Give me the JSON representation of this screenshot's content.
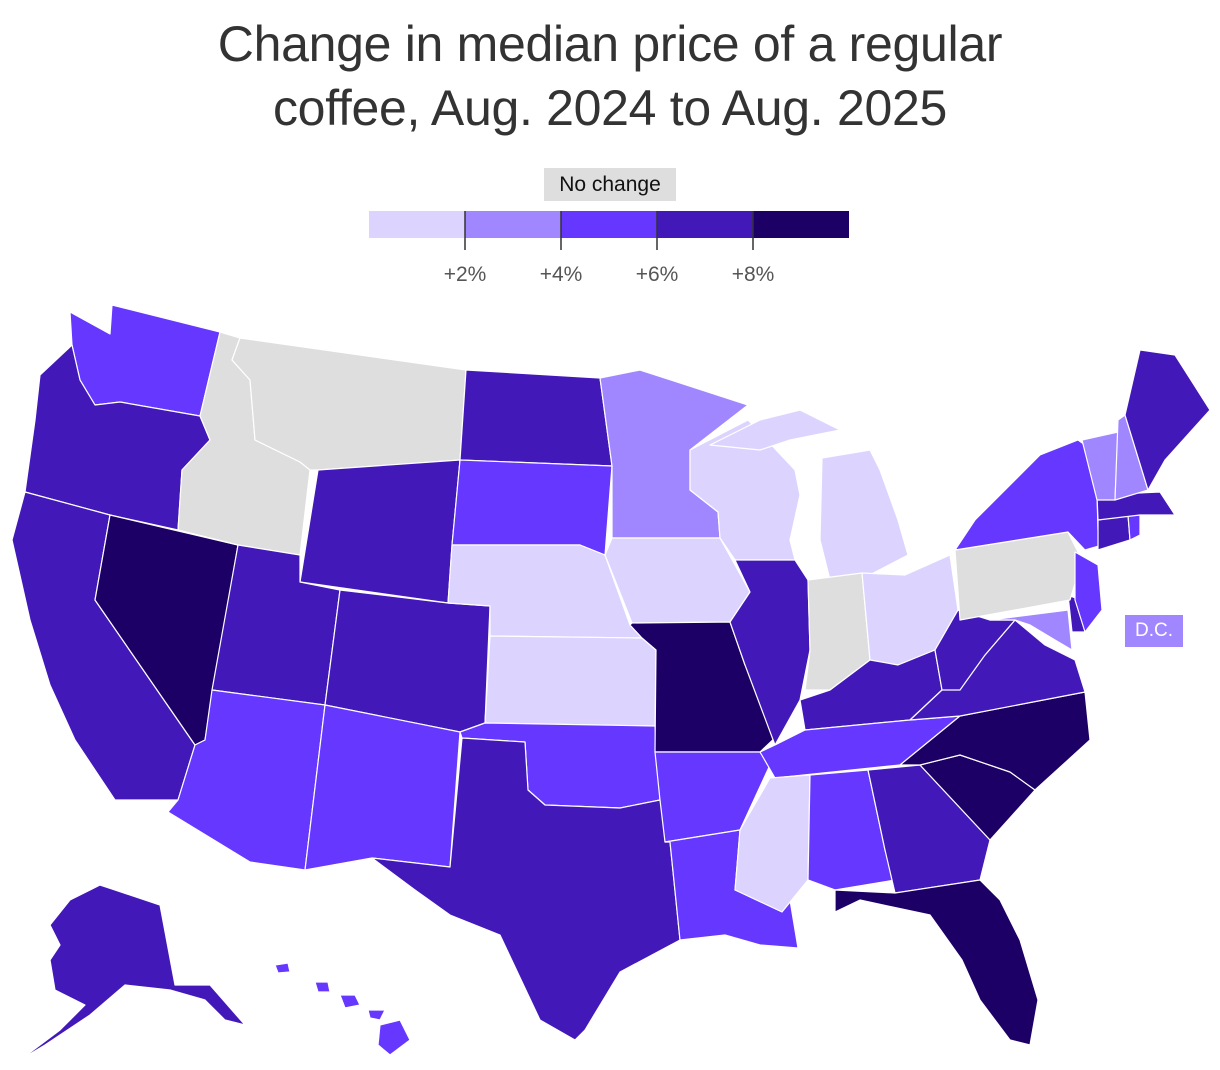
{
  "title_lines": [
    "Change in median price of a regular",
    "coffee, Aug. 2024 to Aug. 2025"
  ],
  "legend": {
    "no_change_label": "No change",
    "no_change_color": "#dedede",
    "bins": [
      {
        "min": 0,
        "max": 2,
        "color": "#dcd4ff"
      },
      {
        "min": 2,
        "max": 4,
        "color": "#a187ff"
      },
      {
        "min": 4,
        "max": 6,
        "color": "#6537ff"
      },
      {
        "min": 6,
        "max": 8,
        "color": "#4219b8"
      },
      {
        "min": 8,
        "max": 10,
        "color": "#1c0066"
      }
    ],
    "ticks": [
      "+2%",
      "+4%",
      "+6%",
      "+8%"
    ]
  },
  "dc_label": "D.C.",
  "dc_color": "#a187ff",
  "states": [
    {
      "abbr": "WA",
      "color": "#6537ff"
    },
    {
      "abbr": "OR",
      "color": "#4219b8"
    },
    {
      "abbr": "CA",
      "color": "#4219b8"
    },
    {
      "abbr": "NV",
      "color": "#1c0066"
    },
    {
      "abbr": "ID",
      "color": "#dedede"
    },
    {
      "abbr": "MT",
      "color": "#dedede"
    },
    {
      "abbr": "WY",
      "color": "#4219b8"
    },
    {
      "abbr": "UT",
      "color": "#4219b8"
    },
    {
      "abbr": "AZ",
      "color": "#6537ff"
    },
    {
      "abbr": "CO",
      "color": "#4219b8"
    },
    {
      "abbr": "NM",
      "color": "#6537ff"
    },
    {
      "abbr": "ND",
      "color": "#4219b8"
    },
    {
      "abbr": "SD",
      "color": "#6537ff"
    },
    {
      "abbr": "NE",
      "color": "#dcd4ff"
    },
    {
      "abbr": "KS",
      "color": "#dcd4ff"
    },
    {
      "abbr": "OK",
      "color": "#6537ff"
    },
    {
      "abbr": "TX",
      "color": "#4219b8"
    },
    {
      "abbr": "MN",
      "color": "#a187ff"
    },
    {
      "abbr": "IA",
      "color": "#dcd4ff"
    },
    {
      "abbr": "MO",
      "color": "#1c0066"
    },
    {
      "abbr": "AR",
      "color": "#6537ff"
    },
    {
      "abbr": "LA",
      "color": "#6537ff"
    },
    {
      "abbr": "WI",
      "color": "#dcd4ff"
    },
    {
      "abbr": "IL",
      "color": "#4219b8"
    },
    {
      "abbr": "MI",
      "color": "#dcd4ff"
    },
    {
      "abbr": "IN",
      "color": "#dedede"
    },
    {
      "abbr": "OH",
      "color": "#dcd4ff"
    },
    {
      "abbr": "KY",
      "color": "#4219b8"
    },
    {
      "abbr": "TN",
      "color": "#6537ff"
    },
    {
      "abbr": "MS",
      "color": "#dcd4ff"
    },
    {
      "abbr": "AL",
      "color": "#6537ff"
    },
    {
      "abbr": "GA",
      "color": "#4219b8"
    },
    {
      "abbr": "FL",
      "color": "#1c0066"
    },
    {
      "abbr": "SC",
      "color": "#1c0066"
    },
    {
      "abbr": "NC",
      "color": "#1c0066"
    },
    {
      "abbr": "VA",
      "color": "#4219b8"
    },
    {
      "abbr": "WV",
      "color": "#4219b8"
    },
    {
      "abbr": "MD",
      "color": "#a187ff"
    },
    {
      "abbr": "DE",
      "color": "#4219b8"
    },
    {
      "abbr": "PA",
      "color": "#dedede"
    },
    {
      "abbr": "NJ",
      "color": "#6537ff"
    },
    {
      "abbr": "NY",
      "color": "#6537ff"
    },
    {
      "abbr": "CT",
      "color": "#4219b8"
    },
    {
      "abbr": "RI",
      "color": "#6537ff"
    },
    {
      "abbr": "MA",
      "color": "#4219b8"
    },
    {
      "abbr": "VT",
      "color": "#a187ff"
    },
    {
      "abbr": "NH",
      "color": "#a187ff"
    },
    {
      "abbr": "ME",
      "color": "#4219b8"
    },
    {
      "abbr": "AK",
      "color": "#4219b8"
    },
    {
      "abbr": "HI",
      "color": "#6537ff"
    }
  ]
}
